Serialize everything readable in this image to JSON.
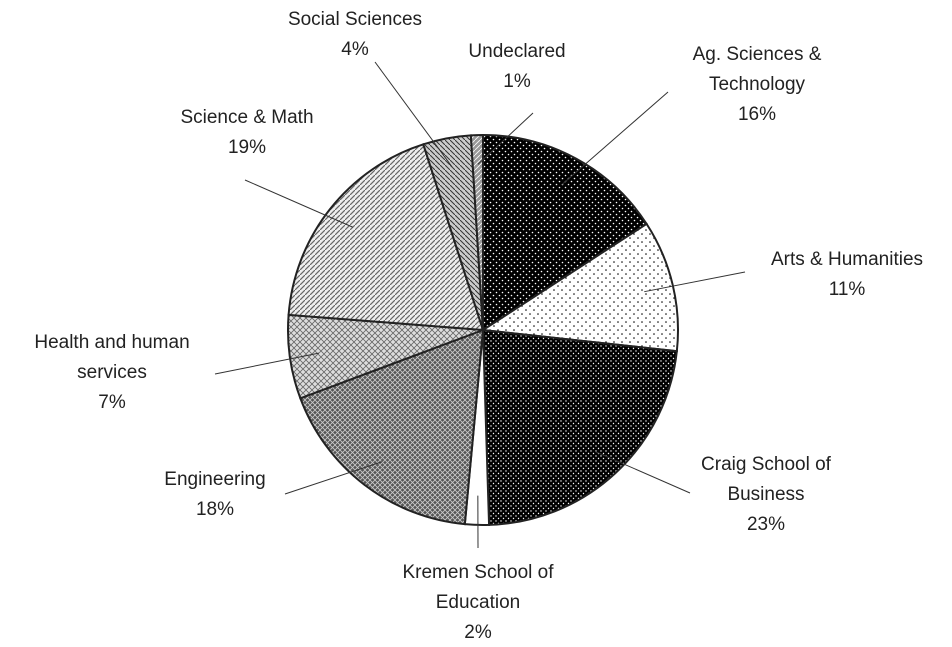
{
  "chart_data": {
    "type": "pie",
    "categories": [
      "Ag. Sciences & Technology",
      "Arts & Humanities",
      "Craig School of Business",
      "Kremen School of Education",
      "Engineering",
      "Health and human services",
      "Science & Math",
      "Social Sciences",
      "Undeclared"
    ],
    "values": [
      16,
      11,
      23,
      2,
      18,
      7,
      19,
      4,
      1
    ],
    "value_labels": [
      "16%",
      "11%",
      "23%",
      "2%",
      "18%",
      "7%",
      "19%",
      "4%",
      "1%"
    ]
  }
}
